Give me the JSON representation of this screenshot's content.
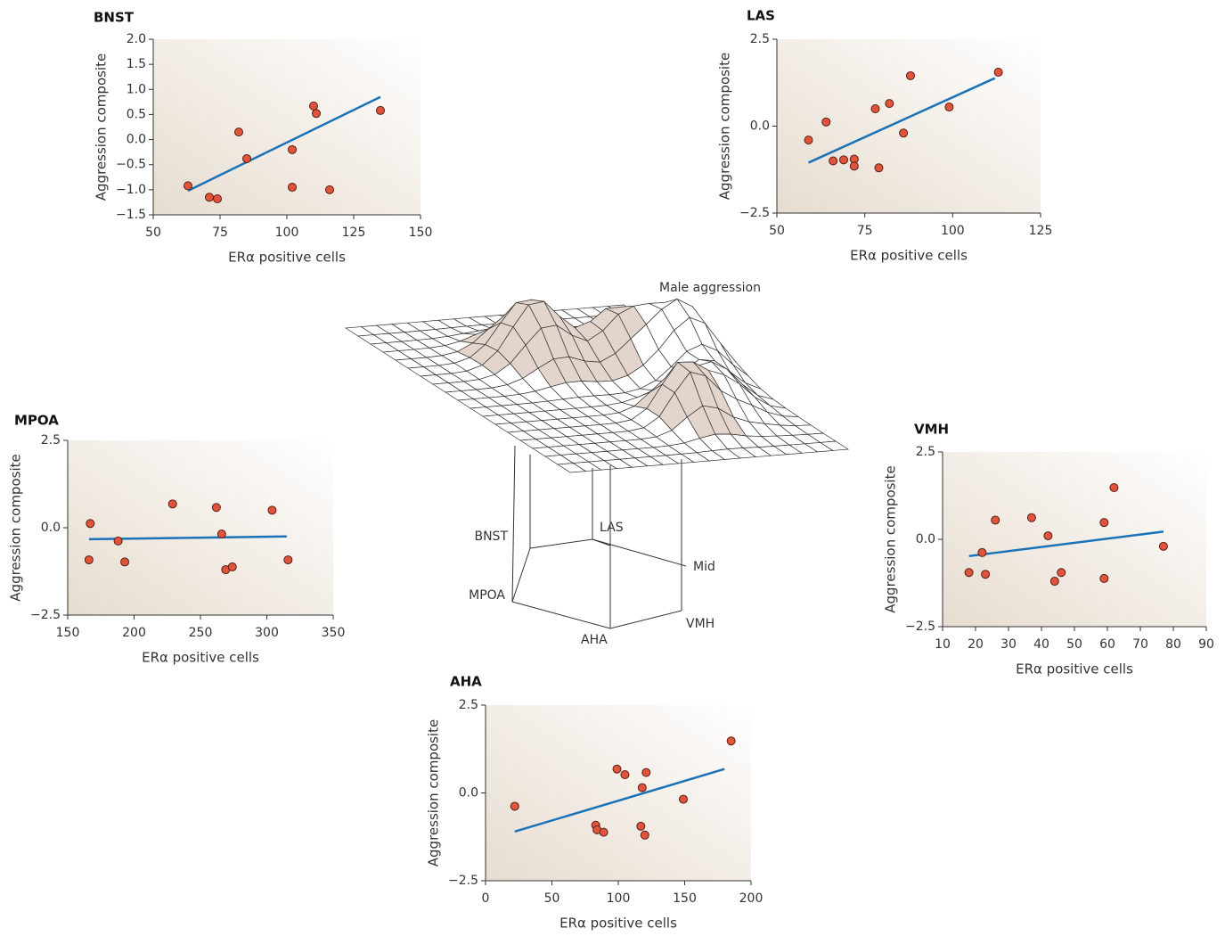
{
  "chart_data": [
    {
      "type": "scatter",
      "title": "BNST",
      "xlabel": "ERα positive cells",
      "ylabel": "Aggression composite",
      "x": [
        63,
        71,
        74,
        82,
        85,
        102,
        102,
        110,
        111,
        116,
        135
      ],
      "values": [
        -0.92,
        -1.15,
        -1.18,
        0.15,
        -0.38,
        -0.2,
        -0.95,
        0.67,
        0.52,
        -1.0,
        0.58
      ],
      "color": "#e0533d",
      "fit": {
        "x": [
          63,
          135
        ],
        "values": [
          -1.02,
          0.85
        ],
        "color": "#1a72b8"
      },
      "xlim": [
        50,
        150
      ],
      "xticks": [
        50,
        75,
        100,
        125,
        150
      ],
      "ylim": [
        -1.5,
        2.0
      ],
      "yticks": [
        {
          "value": -1.5,
          "label": "−1.5"
        },
        {
          "value": -1.0,
          "label": "−1.0"
        },
        {
          "value": -0.5,
          "label": "−0.5"
        },
        {
          "value": 0,
          "label": "0.0"
        },
        0.5,
        {
          "value": 1.0,
          "label": "1.0"
        },
        1.5,
        {
          "value": 2.0,
          "label": "2.0"
        }
      ]
    },
    {
      "type": "scatter",
      "title": "LAS",
      "xlabel": "ERα positive cells",
      "ylabel": "Aggression composite",
      "x": [
        59,
        64,
        66,
        69,
        72,
        72,
        78,
        79,
        82,
        86,
        88,
        99,
        113
      ],
      "values": [
        -0.4,
        0.12,
        -1.0,
        -0.97,
        -0.95,
        -1.15,
        0.5,
        -1.2,
        0.65,
        -0.2,
        1.45,
        0.55,
        1.55
      ],
      "color": "#e0533d",
      "fit": {
        "x": [
          59,
          112
        ],
        "values": [
          -1.05,
          1.38
        ],
        "color": "#1a72b8"
      },
      "xlim": [
        50,
        125
      ],
      "xticks": [
        50,
        75,
        100,
        125
      ],
      "ylim": [
        -2.5,
        2.5
      ],
      "yticks": [
        {
          "value": -2.5,
          "label": "−2.5"
        },
        {
          "value": 0,
          "label": "0.0"
        },
        2.5
      ]
    },
    {
      "type": "scatter",
      "title": "MPOA",
      "xlabel": "ERα positive cells",
      "ylabel": "Aggression composite",
      "x": [
        166,
        167,
        188,
        193,
        229,
        262,
        266,
        269,
        274,
        304,
        316
      ],
      "values": [
        -0.92,
        0.12,
        -0.38,
        -0.98,
        0.68,
        0.58,
        -0.18,
        -1.2,
        -1.12,
        0.5,
        -0.92
      ],
      "color": "#e0533d",
      "fit": {
        "x": [
          166,
          315
        ],
        "values": [
          -0.33,
          -0.25
        ],
        "color": "#1a72b8"
      },
      "xlim": [
        150,
        350
      ],
      "xticks": [
        150,
        200,
        250,
        300,
        350
      ],
      "ylim": [
        -2.5,
        2.5
      ],
      "yticks": [
        {
          "value": -2.5,
          "label": "−2.5"
        },
        {
          "value": 0,
          "label": "0.0"
        },
        2.5
      ]
    },
    {
      "type": "scatter",
      "title": "VMH",
      "xlabel": "ERα positive cells",
      "ylabel": "Aggression composite",
      "x": [
        18,
        22,
        23,
        26,
        37,
        42,
        44,
        46,
        59,
        59,
        62,
        77
      ],
      "values": [
        -0.95,
        -0.38,
        -1.0,
        0.55,
        0.62,
        0.1,
        -1.2,
        -0.95,
        0.48,
        -1.12,
        1.48,
        -0.2
      ],
      "color": "#e0533d",
      "fit": {
        "x": [
          18,
          77
        ],
        "values": [
          -0.48,
          0.22
        ],
        "color": "#1a72b8"
      },
      "xlim": [
        10,
        90
      ],
      "xticks": [
        10,
        20,
        30,
        40,
        50,
        60,
        70,
        80,
        90
      ],
      "ylim": [
        -2.5,
        2.5
      ],
      "yticks": [
        {
          "value": -2.5,
          "label": "−2.5"
        },
        {
          "value": 0,
          "label": "0.0"
        },
        2.5
      ]
    },
    {
      "type": "scatter",
      "title": "AHA",
      "xlabel": "ERα positive cells",
      "ylabel": "Aggression composite",
      "x": [
        22,
        83,
        84,
        89,
        99,
        105,
        117,
        118,
        120,
        121,
        149,
        185
      ],
      "values": [
        -0.38,
        -0.92,
        -1.05,
        -1.12,
        0.68,
        0.52,
        -0.95,
        0.15,
        -1.2,
        0.58,
        -0.18,
        1.48
      ],
      "color": "#e0533d",
      "fit": {
        "x": [
          22,
          180
        ],
        "values": [
          -1.1,
          0.68
        ],
        "color": "#1a72b8"
      },
      "xlim": [
        0,
        200
      ],
      "xticks": [
        0,
        50,
        100,
        150,
        200
      ],
      "ylim": [
        -2.5,
        2.5
      ],
      "yticks": [
        {
          "value": -2.5,
          "label": "−2.5"
        },
        {
          "value": 0,
          "label": "0.0"
        },
        2.5
      ]
    }
  ],
  "surface_figure": {
    "title": "Male aggression",
    "regions": [
      "BNST",
      "LAS",
      "Mid",
      "MPOA",
      "AHA",
      "VMH"
    ]
  }
}
